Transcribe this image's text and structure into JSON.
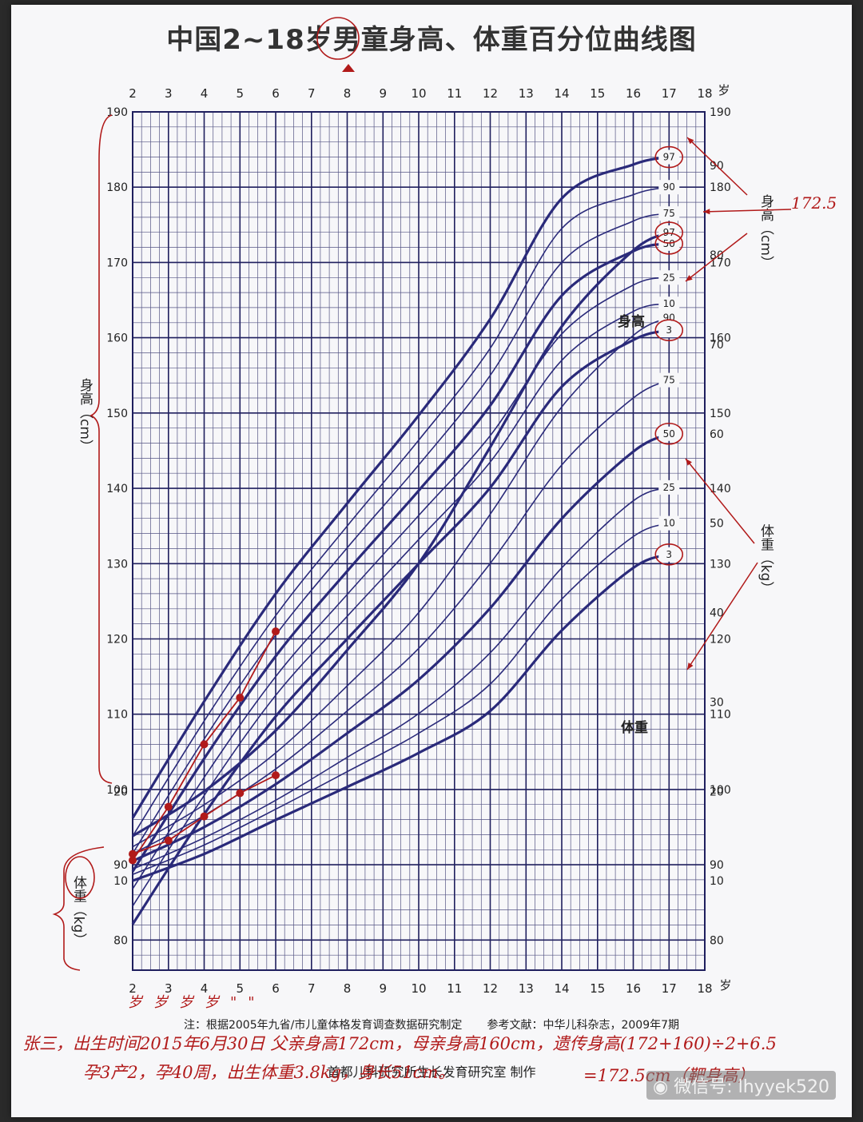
{
  "chart_data": {
    "type": "line",
    "title": "中国2~18岁男童身高、体重百分位曲线图",
    "x_axis": {
      "label": "岁",
      "range": [
        2,
        18
      ],
      "ticks": [
        2,
        3,
        4,
        5,
        6,
        7,
        8,
        9,
        10,
        11,
        12,
        13,
        14,
        15,
        16,
        17,
        18
      ]
    },
    "height_axis": {
      "label": "身高（cm）",
      "unit": "cm",
      "range": [
        76,
        190
      ],
      "ticks": [
        80,
        90,
        100,
        110,
        120,
        130,
        140,
        150,
        160,
        170,
        180,
        190
      ]
    },
    "weight_axis": {
      "label": "体重（kg）",
      "unit": "kg",
      "range": [
        0,
        96
      ],
      "ticks_left": [
        10,
        20
      ],
      "ticks_right": [
        10,
        20,
        30,
        40,
        50,
        60,
        70,
        80,
        90
      ]
    },
    "height_label": "身高",
    "weight_label": "体重",
    "percentiles": [
      "3",
      "10",
      "25",
      "50",
      "75",
      "90",
      "97"
    ],
    "height_series": [
      {
        "name": "3",
        "x": [
          2,
          4,
          6,
          8,
          10,
          12,
          14,
          16,
          17
        ],
        "values": [
          82.1,
          96.7,
          109.7,
          120.0,
          130.0,
          140.1,
          153.5,
          159.7,
          161.0
        ]
      },
      {
        "name": "10",
        "x": [
          2,
          4,
          6,
          8,
          10,
          12,
          14,
          16,
          17
        ],
        "values": [
          84.5,
          99.2,
          112.5,
          123.0,
          133.2,
          143.5,
          157.0,
          163.5,
          164.5
        ]
      },
      {
        "name": "25",
        "x": [
          2,
          4,
          6,
          8,
          10,
          12,
          14,
          16,
          17
        ],
        "values": [
          86.8,
          101.6,
          115.0,
          125.9,
          136.4,
          147.0,
          160.5,
          167.0,
          168.0
        ]
      },
      {
        "name": "50",
        "x": [
          2,
          4,
          6,
          8,
          10,
          12,
          14,
          16,
          17
        ],
        "values": [
          89.1,
          104.1,
          117.7,
          129.0,
          139.7,
          151.0,
          165.6,
          171.5,
          172.5
        ]
      },
      {
        "name": "75",
        "x": [
          2,
          4,
          6,
          8,
          10,
          12,
          14,
          16,
          17
        ],
        "values": [
          91.5,
          106.7,
          120.5,
          132.1,
          143.1,
          155.0,
          170.0,
          175.5,
          176.5
        ]
      },
      {
        "name": "90",
        "x": [
          2,
          4,
          6,
          8,
          10,
          12,
          14,
          16,
          17
        ],
        "values": [
          93.8,
          109.1,
          123.1,
          135.0,
          146.4,
          158.6,
          174.5,
          179.0,
          180.0
        ]
      },
      {
        "name": "97",
        "x": [
          2,
          4,
          6,
          8,
          10,
          12,
          14,
          16,
          17
        ],
        "values": [
          96.2,
          111.7,
          126.0,
          138.0,
          149.7,
          162.5,
          178.5,
          183.0,
          184.0
        ]
      }
    ],
    "weight_series": [
      {
        "name": "3",
        "x": [
          2,
          4,
          6,
          8,
          10,
          12,
          14,
          16,
          17
        ],
        "values": [
          10.0,
          13.0,
          16.8,
          20.5,
          24.3,
          29.0,
          38.0,
          45.0,
          46.5
        ]
      },
      {
        "name": "10",
        "x": [
          2,
          4,
          6,
          8,
          10,
          12,
          14,
          16,
          17
        ],
        "values": [
          10.7,
          14.0,
          18.0,
          22.2,
          26.5,
          32.0,
          41.5,
          48.5,
          50.0
        ]
      },
      {
        "name": "25",
        "x": [
          2,
          4,
          6,
          8,
          10,
          12,
          14,
          16,
          17
        ],
        "values": [
          11.3,
          14.8,
          19.0,
          23.8,
          28.7,
          35.5,
          45.0,
          52.5,
          54.0
        ]
      },
      {
        "name": "50",
        "x": [
          2,
          4,
          6,
          8,
          10,
          12,
          14,
          16,
          17
        ],
        "values": [
          12.2,
          16.0,
          20.8,
          26.5,
          32.5,
          40.5,
          50.5,
          58.0,
          60.0
        ]
      },
      {
        "name": "75",
        "x": [
          2,
          4,
          6,
          8,
          10,
          12,
          14,
          16,
          17
        ],
        "values": [
          13.0,
          17.3,
          22.5,
          29.0,
          36.0,
          45.5,
          56.5,
          64.0,
          66.0
        ]
      },
      {
        "name": "90",
        "x": [
          2,
          4,
          6,
          8,
          10,
          12,
          14,
          16,
          17
        ],
        "values": [
          13.8,
          18.5,
          24.3,
          31.8,
          40.0,
          51.0,
          63.0,
          71.0,
          73.0
        ]
      },
      {
        "name": "97",
        "x": [
          2,
          4,
          6,
          8,
          10,
          12,
          14,
          16,
          17
        ],
        "values": [
          15.0,
          20.0,
          26.8,
          35.8,
          45.5,
          58.5,
          72.0,
          80.5,
          82.5
        ]
      }
    ],
    "child_height": {
      "x": [
        2,
        3,
        4,
        5,
        6
      ],
      "values": [
        90.6,
        97.7,
        106.0,
        112.2,
        121.0
      ]
    },
    "child_weight": {
      "x": [
        2,
        3,
        4,
        5,
        6
      ],
      "values": [
        13.0,
        14.5,
        17.2,
        19.8,
        21.8
      ]
    },
    "colors": {
      "curve": "#2a2a7a",
      "grid": "#1f1f5e",
      "annotation": "#b11a1a"
    },
    "grid": true,
    "notes": {
      "source": "注：根据2005年九省/市儿童体格发育调查数据研究制定",
      "reference": "参考文献：中华儿科杂志，2009年7期",
      "maker": "首都儿科研究所生长发育研究室  制作"
    }
  },
  "handwriting": {
    "line1": "张三，出生时间2015年6月30日  父亲身高172cm，母亲身高160cm，遗传身高(172+160)÷2+6.5",
    "line2": "孕3产2，孕40周，出生体重3.8kg，身长51cm。",
    "line3": "=172.5cm（靶身高）",
    "father_height_mark": "172.5",
    "age_marks": "岁岁岁岁\"\""
  },
  "watermark": {
    "text": "微信号: lhyyek520"
  }
}
